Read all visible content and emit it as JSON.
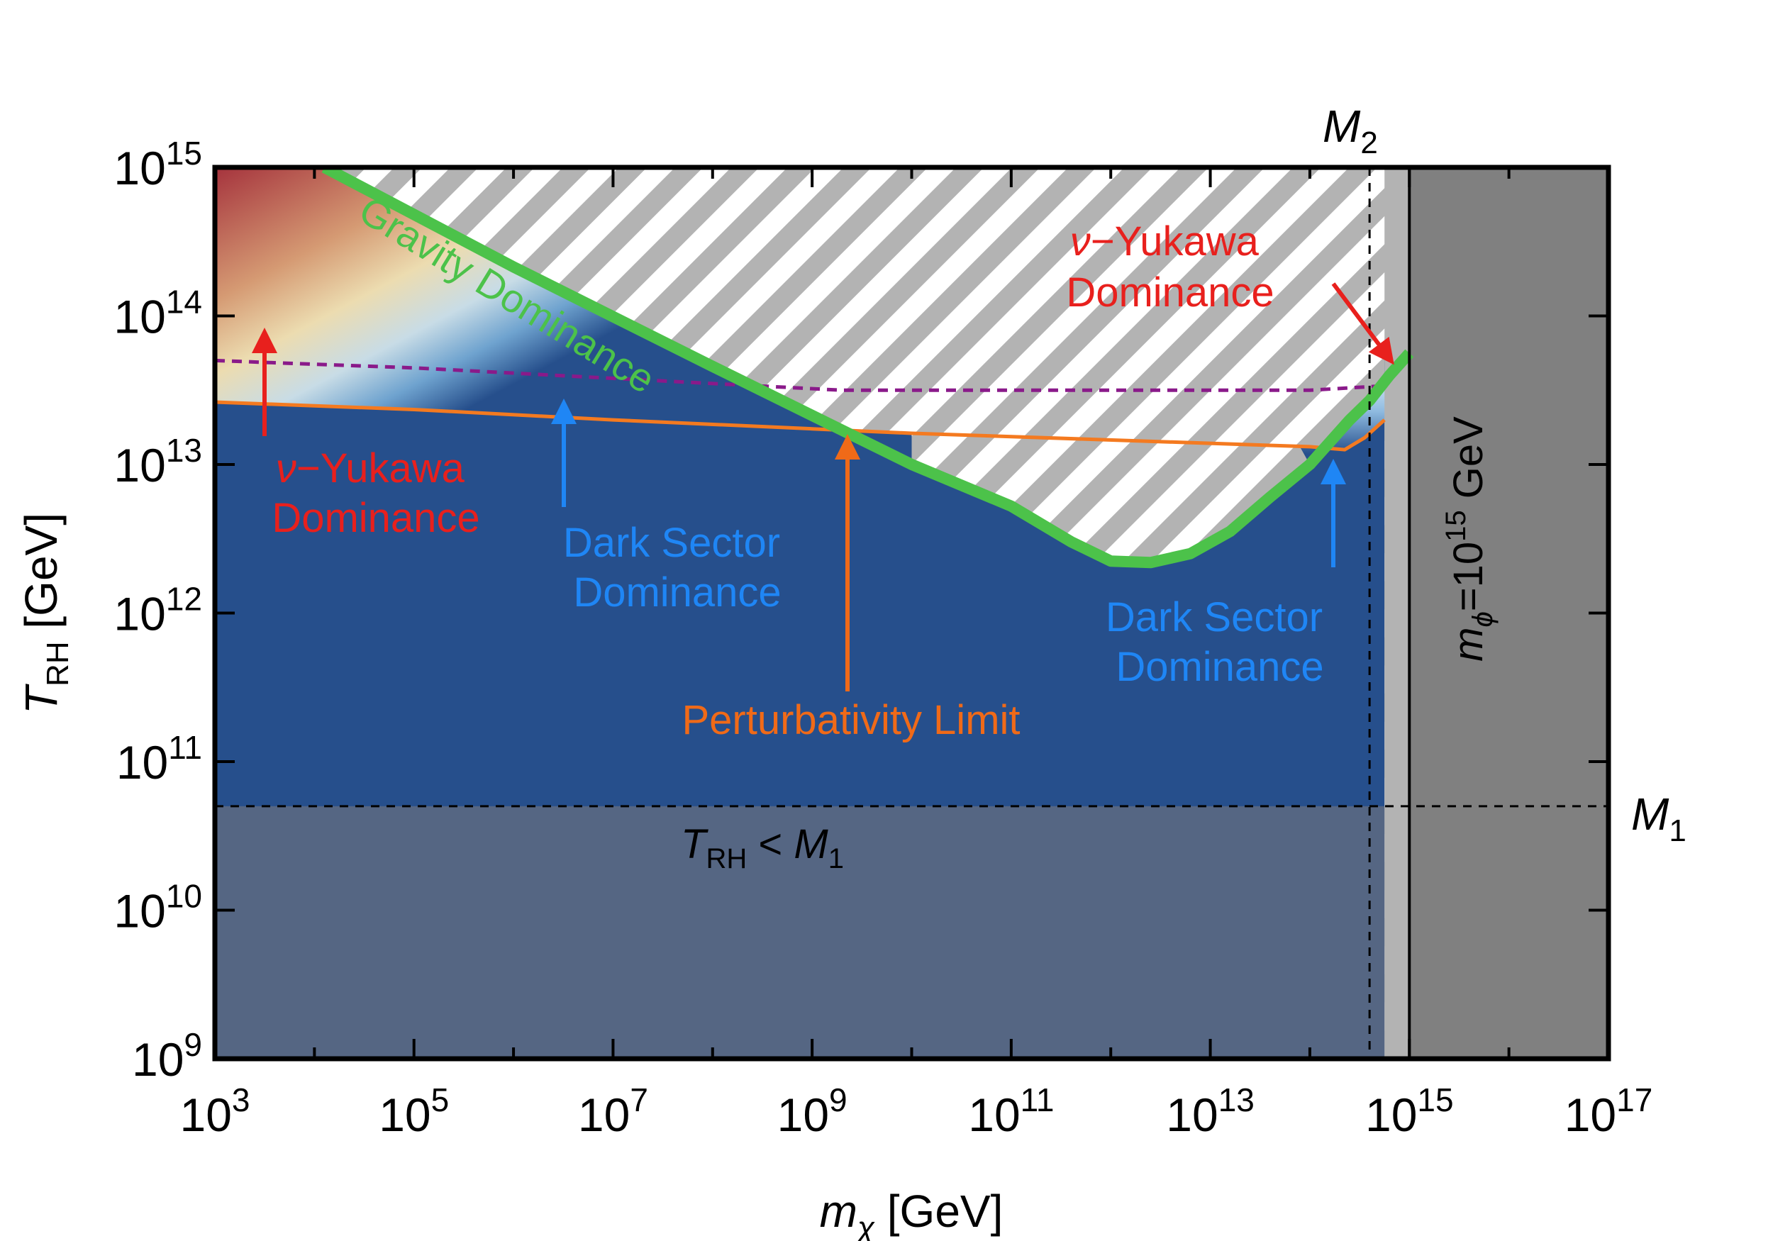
{
  "chart_data": {
    "type": "region-plot",
    "log_axes": true,
    "xlim_exp": [
      3,
      17
    ],
    "ylim_exp": [
      9,
      15
    ],
    "xlabel": {
      "sym": "m",
      "sub": "χ",
      "unit": " [GeV]"
    },
    "ylabel": {
      "sym": "T",
      "sub": "RH",
      "unit": " [GeV]"
    },
    "x_ticks": [
      {
        "exp": 3,
        "base": "10",
        "sup": "3"
      },
      {
        "exp": 5,
        "base": "10",
        "sup": "5"
      },
      {
        "exp": 7,
        "base": "10",
        "sup": "7"
      },
      {
        "exp": 9,
        "base": "10",
        "sup": "9"
      },
      {
        "exp": 11,
        "base": "10",
        "sup": "11"
      },
      {
        "exp": 13,
        "base": "10",
        "sup": "13"
      },
      {
        "exp": 15,
        "base": "10",
        "sup": "15"
      },
      {
        "exp": 17,
        "base": "10",
        "sup": "17"
      }
    ],
    "y_ticks": [
      {
        "exp": 9,
        "base": "10",
        "sup": "9"
      },
      {
        "exp": 10,
        "base": "10",
        "sup": "10"
      },
      {
        "exp": 11,
        "base": "10",
        "sup": "11"
      },
      {
        "exp": 12,
        "base": "10",
        "sup": "12"
      },
      {
        "exp": 13,
        "base": "10",
        "sup": "13"
      },
      {
        "exp": 14,
        "base": "10",
        "sup": "14"
      },
      {
        "exp": 15,
        "base": "10",
        "sup": "15"
      }
    ],
    "series": [
      {
        "name": "Gravity Dominance",
        "color": "#4cc24a",
        "points": [
          [
            4.1,
            15.0
          ],
          [
            6,
            14.33
          ],
          [
            8,
            13.66
          ],
          [
            10,
            13.0
          ],
          [
            11,
            12.72
          ],
          [
            11.6,
            12.48
          ],
          [
            12.0,
            12.35
          ],
          [
            12.4,
            12.34
          ],
          [
            12.8,
            12.4
          ],
          [
            13.2,
            12.55
          ],
          [
            13.6,
            12.78
          ],
          [
            14.0,
            13.0
          ],
          [
            14.4,
            13.3
          ],
          [
            14.6,
            13.43
          ],
          [
            14.8,
            13.6
          ],
          [
            15.0,
            13.75
          ]
        ]
      },
      {
        "name": "Perturbativity Limit",
        "color": "#f47a20",
        "points": [
          [
            3.0,
            13.42
          ],
          [
            5,
            13.37
          ],
          [
            7,
            13.3
          ],
          [
            9,
            13.24
          ],
          [
            10,
            13.21
          ],
          [
            14.0,
            13.12
          ],
          [
            14.35,
            13.1
          ],
          [
            14.55,
            13.18
          ],
          [
            14.75,
            13.3
          ]
        ]
      },
      {
        "name": "Dark Sector / ν-Yukawa boundary",
        "color": "#8a1a8a",
        "style": "dashed",
        "points": [
          [
            3.0,
            13.7
          ],
          [
            5,
            13.65
          ],
          [
            7,
            13.58
          ],
          [
            9.3,
            13.5
          ],
          [
            14.0,
            13.5
          ],
          [
            14.75,
            13.53
          ]
        ]
      }
    ],
    "regions": [
      {
        "name": "Excluded (hatched)",
        "color": "#b3b3b3"
      },
      {
        "name": "Dark blue allowed region",
        "color": "#264f8c"
      },
      {
        "name": "T_RH < M1 shaded",
        "color": "#556683",
        "y_max_exp": 10.7
      },
      {
        "name": "m_phi > 10^15 GeV shaded",
        "color": "#808080",
        "x_min_exp": 15.15
      }
    ],
    "reference_lines": {
      "M1": {
        "y_exp": 10.7,
        "style": "dashed"
      },
      "M2": {
        "x_exp": 14.6,
        "style": "dashed"
      },
      "m_phi": {
        "x_exp": 15.0,
        "style": "solid"
      }
    },
    "annotations": {
      "gravity": "Gravity Dominance",
      "yukawa_left": {
        "nu": "ν",
        "rest": "−Yukawa",
        "line2": "Dominance"
      },
      "yukawa_right": {
        "nu": "ν",
        "rest": "−Yukawa",
        "line2": "Dominance"
      },
      "dark_left": {
        "line1": "Dark Sector",
        "line2": "Dominance"
      },
      "dark_right": {
        "line1": "Dark Sector",
        "line2": "Dominance"
      },
      "perturb": "Perturbativity Limit",
      "trh_m1": {
        "T": "T",
        "sub": "RH",
        "mid": " < ",
        "M": "M",
        "sub2": "1"
      },
      "mphi": {
        "m": "m",
        "sub": "ϕ",
        "eq": "=10",
        "sup": "15",
        "unit": " GeV"
      },
      "M1": {
        "M": "M",
        "sub": "1"
      },
      "M2": {
        "M": "M",
        "sub": "2"
      }
    },
    "colors": {
      "red_text": "#e8201d",
      "blue_text": "#1f86f5",
      "orange_text": "#f06a18",
      "green": "#4cc24a"
    }
  }
}
